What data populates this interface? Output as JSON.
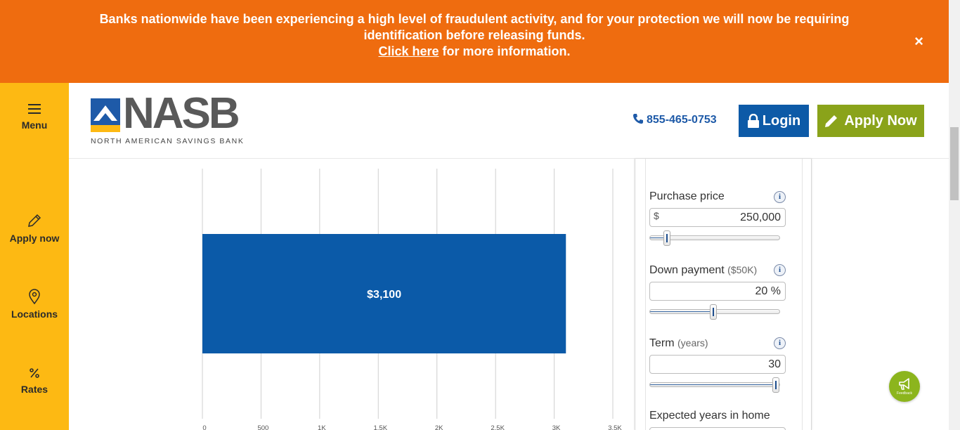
{
  "alert": {
    "message_line1": "Banks nationwide have been experiencing a high level of fraudulent activity, and for your protection we will now be requiring",
    "message_line2": "identification before releasing funds.",
    "link_text": "Click here",
    "link_suffix": " for more information.",
    "close_label": "×"
  },
  "sidenav": {
    "items": [
      {
        "label": "Menu",
        "icon": "hamburger-icon"
      },
      {
        "label": "Apply now",
        "icon": "pencil-icon"
      },
      {
        "label": "Locations",
        "icon": "map-pin-icon"
      },
      {
        "label": "Rates",
        "icon": "percent-icon"
      }
    ]
  },
  "header": {
    "logo_text": "NASB",
    "logo_subtitle": "NORTH AMERICAN SAVINGS BANK",
    "phone": "855-465-0753",
    "login_label": "Login",
    "apply_label": "Apply Now"
  },
  "chart_data": {
    "type": "bar",
    "orientation": "horizontal",
    "categories": [
      ""
    ],
    "values": [
      3100
    ],
    "data_labels": [
      "$3,100"
    ],
    "xlim": [
      0,
      3500
    ],
    "x_ticks": [
      0,
      500,
      1000,
      1500,
      2000,
      2500,
      3000,
      3500
    ],
    "x_tick_labels": [
      "0",
      "500",
      "1K",
      "1.5K",
      "2K",
      "2.5K",
      "3K",
      "3.5K"
    ],
    "grid": true,
    "bar_color": "#0b5aa8"
  },
  "calculator": {
    "purchase_price": {
      "label": "Purchase price",
      "prefix": "$",
      "value": "250,000",
      "slider_fraction": 0.11
    },
    "down_payment": {
      "label": "Down payment",
      "sub": "($50K)",
      "value": "20 %",
      "slider_fraction": 0.49
    },
    "term": {
      "label": "Term",
      "sub": "(years)",
      "value": "30",
      "slider_fraction": 1.0
    },
    "expected_years": {
      "label": "Expected years in home"
    },
    "info_label": "i"
  },
  "feedback": {
    "label": "Feedback"
  },
  "colors": {
    "alert_bg": "#ef6c0f",
    "sidenav_bg": "#fdb913",
    "primary_blue": "#0d5aa7",
    "apply_green": "#8aa31a",
    "feedback_green": "#8cb51d"
  }
}
